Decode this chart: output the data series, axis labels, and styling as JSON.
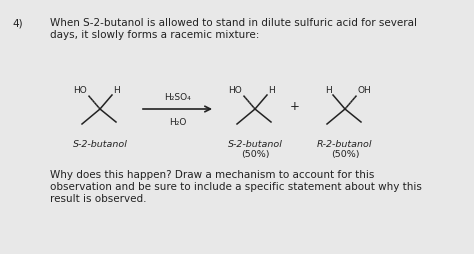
{
  "bg_color": "#e8e8e8",
  "question_num": "4)",
  "intro_line1": "When S-2-butanol is allowed to stand in dilute sulfuric acid for several",
  "intro_line2": "days, it slowly forms a racemic mixture:",
  "reagent_above": "H₂SO₄",
  "reagent_below": "H₂O",
  "plus_sign": "+",
  "label_left": "S-2-butanol",
  "label_right1": "S-2-butanol",
  "label_right1b": "(50%)",
  "label_right2": "R-2-butanol",
  "label_right2b": "(50%)",
  "footer_line1": "Why does this happen? Draw a mechanism to account for this",
  "footer_line2": "observation and be sure to include a specific statement about why this",
  "footer_line3": "result is observed.",
  "font_size_text": 7.5,
  "font_size_label": 6.8,
  "font_size_struct": 6.5,
  "line_color": "#222222",
  "text_color": "#222222",
  "figw": 4.74,
  "figh": 2.55,
  "dpi": 100
}
